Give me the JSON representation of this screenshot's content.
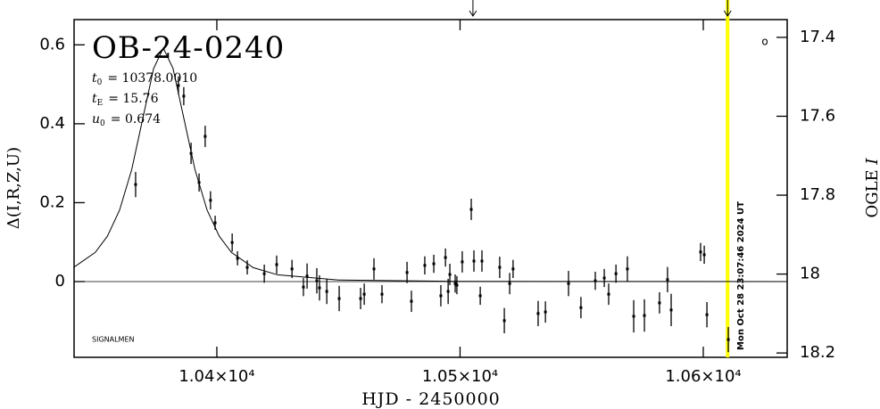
{
  "chart_data": {
    "type": "scatter",
    "title": "OB-24-0240",
    "params": [
      {
        "symbol": "t",
        "sub": "0",
        "text": "= 10378.0010"
      },
      {
        "symbol": "t",
        "sub": "E",
        "text": "= 15.76"
      },
      {
        "symbol": "u",
        "sub": "0",
        "text": "= 0.674"
      }
    ],
    "credit": "SIGNALMEN",
    "corner_symbol": "o",
    "xlabel": "HJD - 2450000",
    "ylabel": "Δ(I,R,Z,U)",
    "y2label": [
      "OGLE",
      "I"
    ],
    "xlim": [
      10341.3,
      10634.5
    ],
    "ylim": [
      -0.192,
      0.664
    ],
    "y2lim": [
      17.355,
      18.211
    ],
    "y2_reversed": true,
    "xticks": [
      {
        "value": 10400,
        "label": "1.04×10⁴"
      },
      {
        "value": 10500,
        "label": "1.05×10⁴"
      },
      {
        "value": 10600,
        "label": "1.06×10⁴"
      }
    ],
    "yticks": [
      0,
      0.2,
      0.4,
      0.6
    ],
    "y2ticks": [
      17.4,
      17.6,
      17.8,
      18,
      18.2
    ],
    "reference_line": 0,
    "point_color": "#000000",
    "model_color": "#000000",
    "points": {
      "x": [
        10366.6,
        10384.2,
        10386.4,
        10389.4,
        10392.7,
        10395.2,
        10397.4,
        10399.3,
        10406.3,
        10408.5,
        10412.5,
        10419.5,
        10424.6,
        10430.9,
        10435.6,
        10437.1,
        10441.1,
        10442.2,
        10445.2,
        10450.3,
        10459.1,
        10460.6,
        10464.6,
        10467.9,
        10478.2,
        10480.0,
        10485.5,
        10489.2,
        10492.1,
        10494.0,
        10495.1,
        10495.8,
        10498.0,
        10498.7,
        10500.9,
        10504.6,
        10505.7,
        10508.3,
        10509.0,
        10516.3,
        10518.2,
        10520.4,
        10521.8,
        10532.1,
        10535.1,
        10544.6,
        10549.7,
        10555.6,
        10559.3,
        10561.1,
        10564.1,
        10568.8,
        10571.4,
        10575.8,
        10582.0,
        10585.3,
        10586.8,
        10598.9,
        10600.4,
        10601.5,
        10610.3
      ],
      "values": [
        0.246,
        0.497,
        0.47,
        0.325,
        0.251,
        0.368,
        0.206,
        0.149,
        0.099,
        0.059,
        0.036,
        0.02,
        0.043,
        0.032,
        -0.014,
        0.014,
        0.002,
        -0.016,
        -0.025,
        -0.043,
        -0.043,
        -0.032,
        0.032,
        -0.032,
        0.023,
        -0.05,
        0.041,
        0.045,
        -0.036,
        0.061,
        -0.025,
        0.018,
        -0.005,
        -0.009,
        0.05,
        0.183,
        0.052,
        -0.036,
        0.052,
        0.036,
        -0.099,
        -0.005,
        0.032,
        -0.081,
        -0.077,
        -0.005,
        -0.066,
        0.002,
        0.009,
        -0.032,
        0.02,
        0.032,
        -0.088,
        -0.086,
        -0.054,
        0.005,
        -0.072,
        0.075,
        0.068,
        -0.084,
        -0.147
      ],
      "errors": [
        0.032,
        0.023,
        0.023,
        0.027,
        0.023,
        0.027,
        0.023,
        0.018,
        0.023,
        0.018,
        0.018,
        0.023,
        0.023,
        0.023,
        0.023,
        0.032,
        0.032,
        0.032,
        0.032,
        0.032,
        0.027,
        0.027,
        0.027,
        0.023,
        0.027,
        0.027,
        0.023,
        0.023,
        0.027,
        0.023,
        0.032,
        0.027,
        0.023,
        0.023,
        0.027,
        0.027,
        0.027,
        0.023,
        0.027,
        0.027,
        0.032,
        0.027,
        0.023,
        0.032,
        0.027,
        0.032,
        0.027,
        0.023,
        0.023,
        0.027,
        0.023,
        0.032,
        0.041,
        0.041,
        0.027,
        0.032,
        0.041,
        0.023,
        0.023,
        0.032,
        0.032
      ]
    },
    "model": {
      "x": [
        10341,
        10350,
        10355,
        10360,
        10365,
        10370,
        10374,
        10378,
        10382,
        10386,
        10391,
        10396,
        10401,
        10406,
        10415,
        10425,
        10450,
        10500,
        10634
      ],
      "values": [
        0.0353,
        0.0738,
        0.115,
        0.181,
        0.284,
        0.426,
        0.54,
        0.592,
        0.54,
        0.426,
        0.284,
        0.181,
        0.115,
        0.0738,
        0.0353,
        0.0171,
        0.004,
        0.0005,
        0
      ]
    },
    "arrows": [
      10505.3,
      10610.0
    ],
    "now_line": {
      "x": 10610.0,
      "color": "#ffff00",
      "label": "Mon Oct 28 23:07:46 2024 UT"
    }
  }
}
